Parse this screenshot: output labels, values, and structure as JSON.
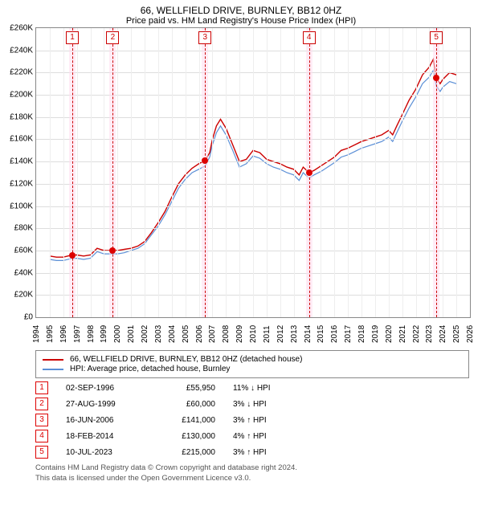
{
  "title": "66, WELLFIELD DRIVE, BURNLEY, BB12 0HZ",
  "subtitle": "Price paid vs. HM Land Registry's House Price Index (HPI)",
  "chart": {
    "type": "line",
    "background_color": "#ffffff",
    "grid_color": "#e0e0e0",
    "border_color": "#888888",
    "y": {
      "min": 0,
      "max": 260000,
      "step": 20000,
      "prefix": "£",
      "suffix": "K",
      "divisor": 1000,
      "label_fontsize": 10
    },
    "x": {
      "min": 1994,
      "max": 2026,
      "step": 1,
      "label_fontsize": 10
    },
    "series": [
      {
        "name": "66, WELLFIELD DRIVE, BURNLEY, BB12 0HZ (detached house)",
        "color": "#cc0000",
        "line_width": 1.4,
        "points": [
          [
            1995.0,
            55000
          ],
          [
            1995.5,
            54000
          ],
          [
            1996.0,
            54000
          ],
          [
            1996.67,
            55950
          ],
          [
            1997.0,
            56000
          ],
          [
            1997.5,
            55000
          ],
          [
            1998.0,
            56000
          ],
          [
            1998.5,
            62000
          ],
          [
            1999.0,
            60000
          ],
          [
            1999.65,
            60000
          ],
          [
            2000.0,
            60000
          ],
          [
            2000.5,
            61000
          ],
          [
            2001.0,
            62000
          ],
          [
            2001.5,
            64000
          ],
          [
            2002.0,
            68000
          ],
          [
            2002.5,
            76000
          ],
          [
            2003.0,
            85000
          ],
          [
            2003.5,
            95000
          ],
          [
            2004.0,
            108000
          ],
          [
            2004.5,
            120000
          ],
          [
            2005.0,
            128000
          ],
          [
            2005.5,
            134000
          ],
          [
            2006.0,
            138000
          ],
          [
            2006.46,
            141000
          ],
          [
            2006.8,
            148000
          ],
          [
            2007.0,
            160000
          ],
          [
            2007.3,
            172000
          ],
          [
            2007.6,
            178000
          ],
          [
            2008.0,
            170000
          ],
          [
            2008.5,
            155000
          ],
          [
            2009.0,
            140000
          ],
          [
            2009.5,
            142000
          ],
          [
            2010.0,
            150000
          ],
          [
            2010.5,
            148000
          ],
          [
            2011.0,
            142000
          ],
          [
            2011.5,
            140000
          ],
          [
            2012.0,
            138000
          ],
          [
            2012.5,
            135000
          ],
          [
            2013.0,
            133000
          ],
          [
            2013.4,
            128000
          ],
          [
            2013.7,
            135000
          ],
          [
            2014.13,
            130000
          ],
          [
            2014.5,
            132000
          ],
          [
            2015.0,
            136000
          ],
          [
            2015.5,
            140000
          ],
          [
            2016.0,
            144000
          ],
          [
            2016.5,
            150000
          ],
          [
            2017.0,
            152000
          ],
          [
            2017.5,
            155000
          ],
          [
            2018.0,
            158000
          ],
          [
            2018.5,
            160000
          ],
          [
            2019.0,
            162000
          ],
          [
            2019.5,
            164000
          ],
          [
            2020.0,
            168000
          ],
          [
            2020.3,
            164000
          ],
          [
            2020.6,
            172000
          ],
          [
            2021.0,
            182000
          ],
          [
            2021.5,
            195000
          ],
          [
            2022.0,
            205000
          ],
          [
            2022.5,
            218000
          ],
          [
            2023.0,
            225000
          ],
          [
            2023.3,
            232000
          ],
          [
            2023.52,
            215000
          ],
          [
            2023.8,
            210000
          ],
          [
            2024.0,
            214000
          ],
          [
            2024.5,
            220000
          ],
          [
            2025.0,
            218000
          ]
        ]
      },
      {
        "name": "HPI: Average price, detached house, Burnley",
        "color": "#5b8fd6",
        "line_width": 1.2,
        "points": [
          [
            1995.0,
            52000
          ],
          [
            1995.5,
            51000
          ],
          [
            1996.0,
            51000
          ],
          [
            1996.67,
            53000
          ],
          [
            1997.0,
            53000
          ],
          [
            1997.5,
            52000
          ],
          [
            1998.0,
            53000
          ],
          [
            1998.5,
            59000
          ],
          [
            1999.0,
            57000
          ],
          [
            1999.65,
            57000
          ],
          [
            2000.0,
            57000
          ],
          [
            2000.5,
            58000
          ],
          [
            2001.0,
            60000
          ],
          [
            2001.5,
            62000
          ],
          [
            2002.0,
            66000
          ],
          [
            2002.5,
            74000
          ],
          [
            2003.0,
            82000
          ],
          [
            2003.5,
            92000
          ],
          [
            2004.0,
            104000
          ],
          [
            2004.5,
            116000
          ],
          [
            2005.0,
            124000
          ],
          [
            2005.5,
            130000
          ],
          [
            2006.0,
            133000
          ],
          [
            2006.46,
            136000
          ],
          [
            2006.8,
            144000
          ],
          [
            2007.0,
            155000
          ],
          [
            2007.3,
            166000
          ],
          [
            2007.6,
            172000
          ],
          [
            2008.0,
            164000
          ],
          [
            2008.5,
            150000
          ],
          [
            2009.0,
            135000
          ],
          [
            2009.5,
            138000
          ],
          [
            2010.0,
            145000
          ],
          [
            2010.5,
            143000
          ],
          [
            2011.0,
            138000
          ],
          [
            2011.5,
            135000
          ],
          [
            2012.0,
            133000
          ],
          [
            2012.5,
            130000
          ],
          [
            2013.0,
            128000
          ],
          [
            2013.4,
            123000
          ],
          [
            2013.7,
            130000
          ],
          [
            2014.13,
            125000
          ],
          [
            2014.5,
            128000
          ],
          [
            2015.0,
            131000
          ],
          [
            2015.5,
            135000
          ],
          [
            2016.0,
            139000
          ],
          [
            2016.5,
            144000
          ],
          [
            2017.0,
            146000
          ],
          [
            2017.5,
            149000
          ],
          [
            2018.0,
            152000
          ],
          [
            2018.5,
            154000
          ],
          [
            2019.0,
            156000
          ],
          [
            2019.5,
            158000
          ],
          [
            2020.0,
            162000
          ],
          [
            2020.3,
            158000
          ],
          [
            2020.6,
            166000
          ],
          [
            2021.0,
            176000
          ],
          [
            2021.5,
            188000
          ],
          [
            2022.0,
            198000
          ],
          [
            2022.5,
            210000
          ],
          [
            2023.0,
            216000
          ],
          [
            2023.3,
            222000
          ],
          [
            2023.52,
            208000
          ],
          [
            2023.8,
            203000
          ],
          [
            2024.0,
            207000
          ],
          [
            2024.5,
            212000
          ],
          [
            2025.0,
            210000
          ]
        ]
      }
    ],
    "markers": [
      {
        "n": "1",
        "x": 1996.67,
        "price": 55950
      },
      {
        "n": "2",
        "x": 1999.65,
        "price": 60000
      },
      {
        "n": "3",
        "x": 2006.46,
        "price": 141000
      },
      {
        "n": "4",
        "x": 2014.13,
        "price": 130000
      },
      {
        "n": "5",
        "x": 2023.52,
        "price": 215000
      }
    ],
    "marker_style": {
      "box_border": "#cc0000",
      "box_text": "#cc0000",
      "band_color": "#fde",
      "dash_color": "#cc0000"
    }
  },
  "legend": {
    "items": [
      {
        "color": "#cc0000",
        "label": "66, WELLFIELD DRIVE, BURNLEY, BB12 0HZ (detached house)"
      },
      {
        "color": "#5b8fd6",
        "label": "HPI: Average price, detached house, Burnley"
      }
    ]
  },
  "sales": [
    {
      "n": "1",
      "date": "02-SEP-1996",
      "price": "£55,950",
      "rel": "11% ↓ HPI"
    },
    {
      "n": "2",
      "date": "27-AUG-1999",
      "price": "£60,000",
      "rel": "3% ↓ HPI"
    },
    {
      "n": "3",
      "date": "16-JUN-2006",
      "price": "£141,000",
      "rel": "3% ↑ HPI"
    },
    {
      "n": "4",
      "date": "18-FEB-2014",
      "price": "£130,000",
      "rel": "4% ↑ HPI"
    },
    {
      "n": "5",
      "date": "10-JUL-2023",
      "price": "£215,000",
      "rel": "3% ↑ HPI"
    }
  ],
  "footer_line1": "Contains HM Land Registry data © Crown copyright and database right 2024.",
  "footer_line2": "This data is licensed under the Open Government Licence v3.0."
}
